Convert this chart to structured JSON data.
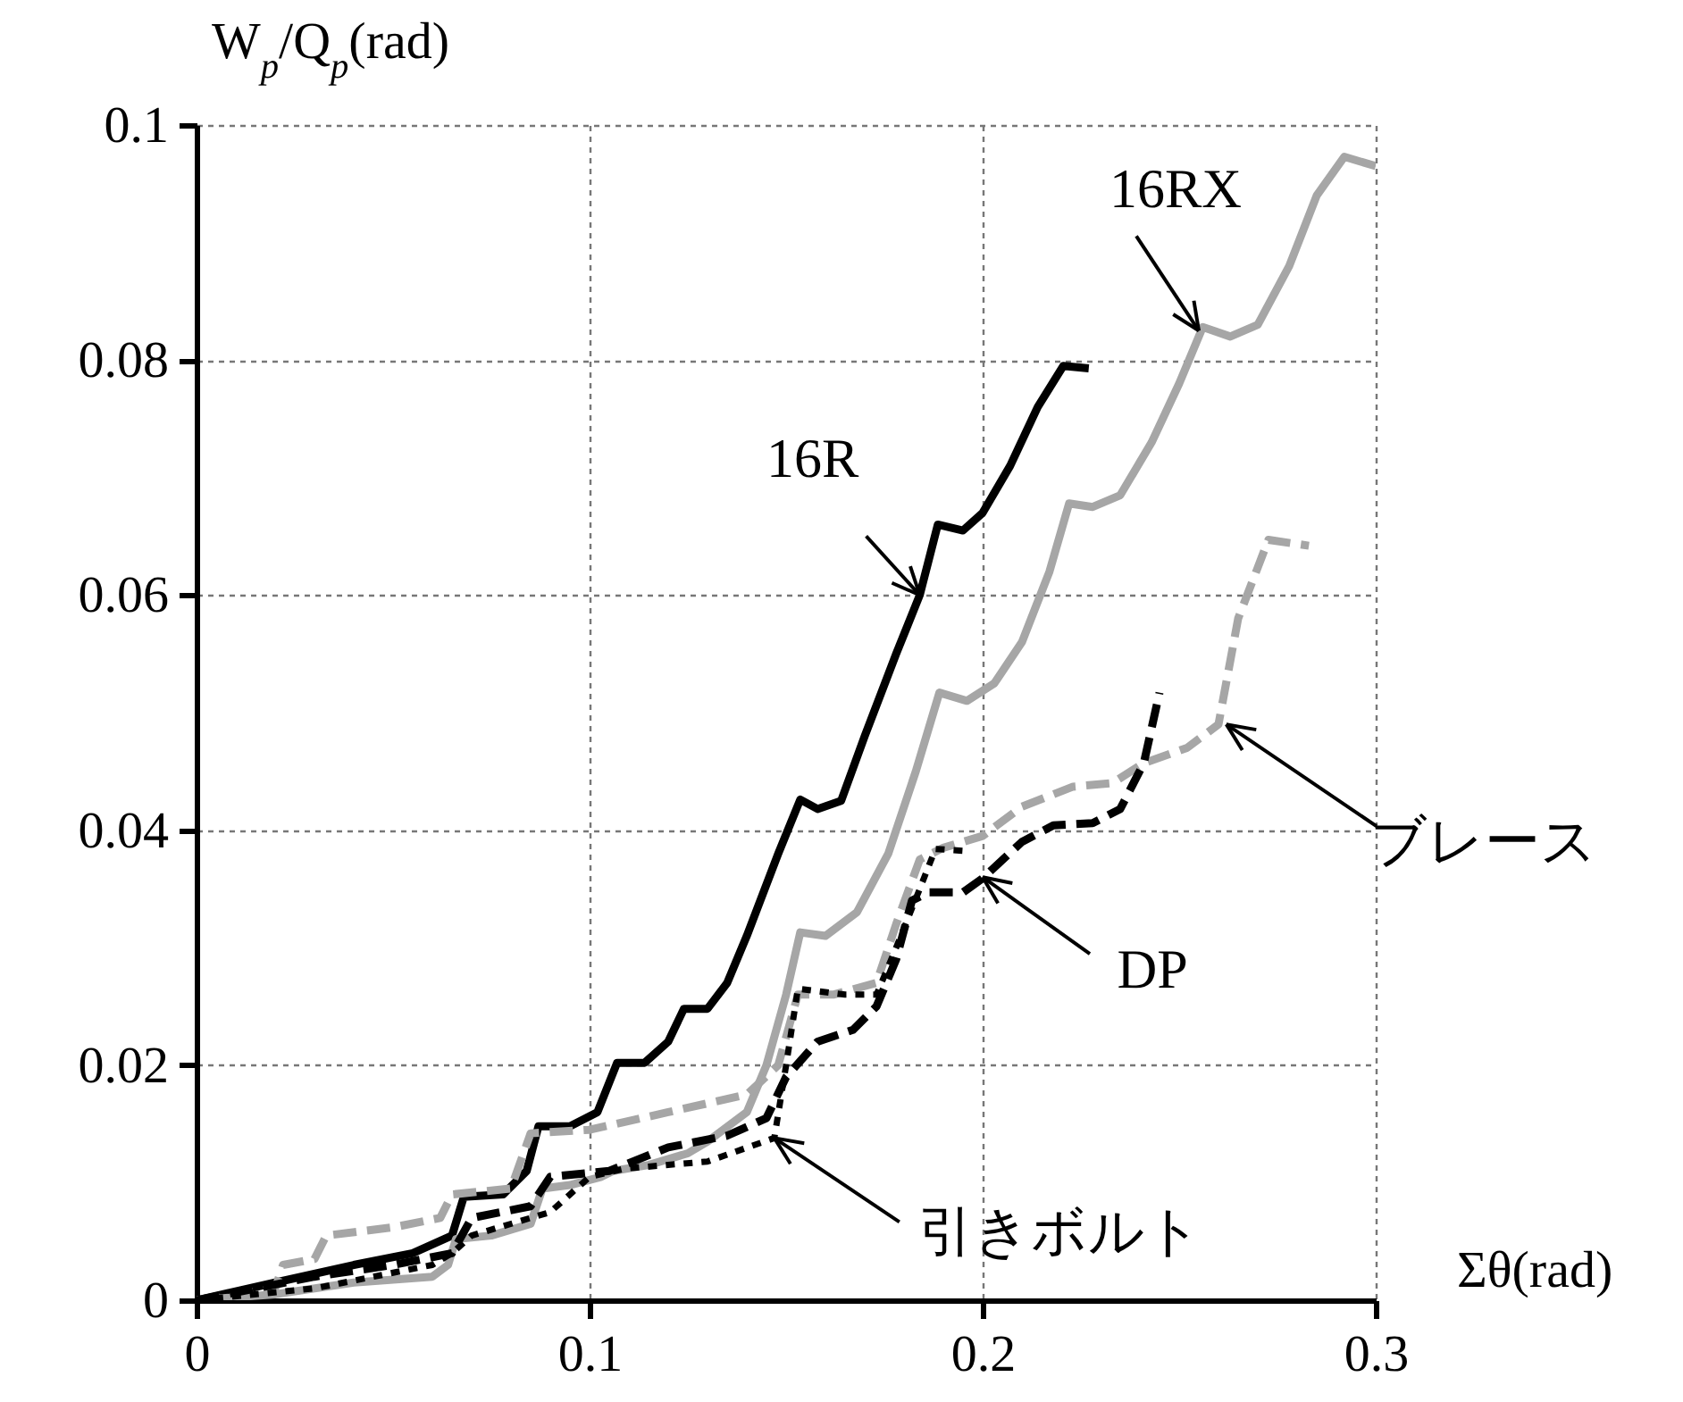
{
  "chart_data": {
    "type": "line",
    "xlabel": "Σθ(rad)",
    "ylabel": "W$_{p}$/Q$_{p}$(rad)",
    "xlim": [
      0,
      0.3
    ],
    "ylim": [
      0,
      0.1
    ],
    "xticks": [
      0,
      0.1,
      0.2,
      0.3
    ],
    "yticks": [
      0,
      0.02,
      0.04,
      0.06,
      0.08,
      0.1
    ],
    "grid": true,
    "annotations": [
      {
        "text": "16R",
        "x": 0.184,
        "y": 0.06
      },
      {
        "text": "16RX",
        "x": 0.255,
        "y": 0.0825
      },
      {
        "text": "ブレース",
        "x": 0.262,
        "y": 0.049
      },
      {
        "text": "DP",
        "x": 0.2,
        "y": 0.036
      },
      {
        "text": "引きボルト",
        "x": 0.147,
        "y": 0.0138
      }
    ],
    "series": [
      {
        "color": "#000000",
        "line_style": "solid",
        "x": [
          0,
          0.02,
          0.04,
          0.055,
          0.065,
          0.068,
          0.078,
          0.084,
          0.087,
          0.095,
          0.102,
          0.107,
          0.114,
          0.12,
          0.124,
          0.13,
          0.135,
          0.14,
          0.148,
          0.1536,
          0.158,
          0.164,
          0.17,
          0.178,
          0.184,
          0.1886,
          0.195,
          0.2,
          0.207,
          0.214,
          0.2205,
          0.227
        ],
        "values": [
          0,
          0.0015,
          0.003,
          0.004,
          0.0055,
          0.0088,
          0.009,
          0.011,
          0.0148,
          0.0148,
          0.016,
          0.0202,
          0.0202,
          0.022,
          0.0248,
          0.0248,
          0.027,
          0.031,
          0.038,
          0.0426,
          0.0418,
          0.0425,
          0.048,
          0.055,
          0.06,
          0.066,
          0.0655,
          0.067,
          0.071,
          0.076,
          0.0795,
          0.0793
        ]
      },
      {
        "color": "#a6a6a6",
        "line_style": "solid",
        "x": [
          0,
          0.02,
          0.04,
          0.06,
          0.064,
          0.066,
          0.075,
          0.085,
          0.088,
          0.095,
          0.103,
          0.106,
          0.115,
          0.125,
          0.13,
          0.14,
          0.145,
          0.15,
          0.1536,
          0.16,
          0.168,
          0.176,
          0.183,
          0.189,
          0.196,
          0.203,
          0.21,
          0.217,
          0.222,
          0.228,
          0.235,
          0.243,
          0.25,
          0.256,
          0.263,
          0.27,
          0.278,
          0.285,
          0.292,
          0.3
        ],
        "values": [
          0,
          0.0005,
          0.0015,
          0.002,
          0.003,
          0.0052,
          0.0055,
          0.0065,
          0.0095,
          0.0098,
          0.0105,
          0.011,
          0.0115,
          0.0125,
          0.0135,
          0.016,
          0.02,
          0.026,
          0.0313,
          0.031,
          0.033,
          0.038,
          0.045,
          0.0517,
          0.051,
          0.0525,
          0.056,
          0.062,
          0.0678,
          0.0675,
          0.0685,
          0.073,
          0.078,
          0.0828,
          0.082,
          0.083,
          0.088,
          0.094,
          0.0973,
          0.0965
        ]
      },
      {
        "color": "#a6a6a6",
        "line_style": "dashed",
        "x": [
          0,
          0.02,
          0.022,
          0.03,
          0.033,
          0.05,
          0.062,
          0.065,
          0.08,
          0.085,
          0.1,
          0.12,
          0.14,
          0.148,
          0.153,
          0.162,
          0.173,
          0.178,
          0.184,
          0.19,
          0.2,
          0.21,
          0.223,
          0.233,
          0.241,
          0.252,
          0.26,
          0.265,
          0.2727,
          0.283
        ],
        "values": [
          0,
          0.001,
          0.003,
          0.0035,
          0.0055,
          0.0062,
          0.007,
          0.009,
          0.0095,
          0.0142,
          0.0145,
          0.016,
          0.0175,
          0.02,
          0.026,
          0.026,
          0.027,
          0.032,
          0.0375,
          0.0385,
          0.0395,
          0.042,
          0.0437,
          0.044,
          0.0457,
          0.047,
          0.049,
          0.058,
          0.0647,
          0.0642
        ]
      },
      {
        "color": "#000000",
        "line_style": "dashed",
        "x": [
          0,
          0.03,
          0.05,
          0.065,
          0.07,
          0.085,
          0.09,
          0.105,
          0.12,
          0.135,
          0.145,
          0.15,
          0.158,
          0.167,
          0.173,
          0.178,
          0.182,
          0.186,
          0.195,
          0.2,
          0.21,
          0.218,
          0.228,
          0.235,
          0.241,
          0.245
        ],
        "values": [
          0,
          0.002,
          0.003,
          0.004,
          0.007,
          0.008,
          0.0105,
          0.011,
          0.013,
          0.014,
          0.0155,
          0.019,
          0.022,
          0.023,
          0.025,
          0.029,
          0.034,
          0.0347,
          0.0347,
          0.0359,
          0.039,
          0.0404,
          0.0406,
          0.0418,
          0.0457,
          0.0517
        ]
      },
      {
        "color": "#000000",
        "line_style": "dotted",
        "x": [
          0,
          0.03,
          0.06,
          0.065,
          0.07,
          0.09,
          0.095,
          0.1,
          0.109,
          0.13,
          0.147,
          0.15,
          0.153,
          0.165,
          0.173,
          0.178,
          0.184,
          0.188,
          0.197
        ],
        "values": [
          0,
          0.001,
          0.003,
          0.004,
          0.0055,
          0.0075,
          0.009,
          0.0105,
          0.0112,
          0.0118,
          0.0138,
          0.02,
          0.0265,
          0.026,
          0.026,
          0.03,
          0.035,
          0.0384,
          0.0382
        ]
      }
    ]
  }
}
